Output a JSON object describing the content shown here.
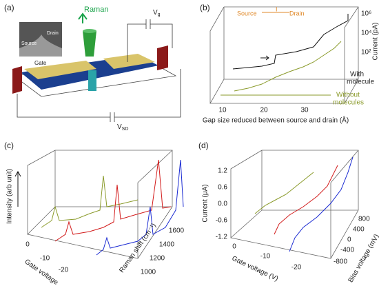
{
  "panels": {
    "a": {
      "label": "(a)",
      "raman": "Raman",
      "vg": {
        "main": "V",
        "sub": "g"
      },
      "vsd": {
        "main": "V",
        "sub": "SD"
      },
      "inset": {
        "source": "Source",
        "drain": "Drain",
        "gate": "Gate"
      }
    },
    "b": {
      "label": "(b)",
      "inset": {
        "source": "Source",
        "current": "I",
        "drain": "Drain"
      },
      "y_label": "Current (pA)",
      "yticks": [
        "10⁶",
        "10⁴",
        "10²"
      ],
      "xticks": [
        10,
        20,
        30
      ],
      "x_label": "Gap size reduced between source and drain (Å)",
      "with": [
        "With",
        "molecule"
      ],
      "without": [
        "Without",
        "molecules"
      ]
    },
    "c": {
      "label": "(c)",
      "y_label": "Intensity (arb unit)",
      "gate_ticks": [
        0,
        -10,
        -20
      ],
      "gate_label": "Gate voltage",
      "raman_ticks": [
        1000,
        1200,
        1400,
        1600
      ],
      "raman_label": "Raman shift (cm⁻¹)"
    },
    "d": {
      "label": "(d)",
      "yticks": [
        "1.2",
        "0.6",
        "0.0",
        "-0.6",
        "-1.2"
      ],
      "y_label": "Current (μA)",
      "gate_ticks": [
        0,
        -10,
        -20
      ],
      "gate_label": "Gate voltage (V)",
      "bias_ticks": [
        800,
        400,
        0,
        -400,
        -800
      ],
      "bias_label": "Bias voltage (mV)"
    }
  }
}
